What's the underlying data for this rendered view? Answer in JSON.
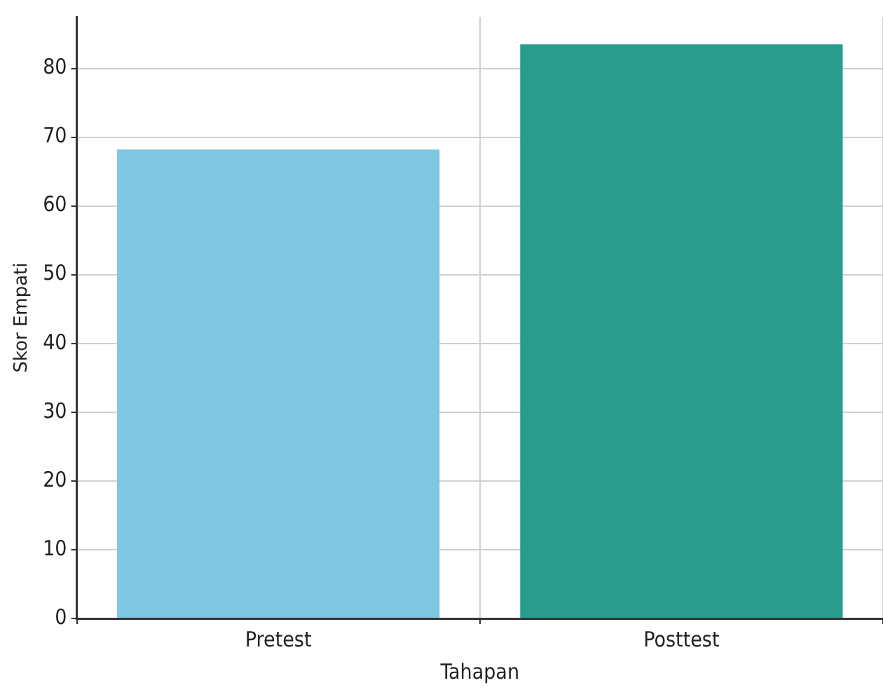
{
  "chart_data": {
    "type": "bar",
    "xlabel": "Tahapan",
    "ylabel": "Skor Empati",
    "categories": [
      "Pretest",
      "Posttest"
    ],
    "values": [
      68.2,
      83.5
    ],
    "colors": [
      "#7ec6e2",
      "#2a9c8c"
    ],
    "ylim": [
      0,
      87.5
    ],
    "yticks": [
      0,
      10,
      20,
      30,
      40,
      50,
      60,
      70,
      80
    ],
    "grid": true,
    "legend": false
  }
}
